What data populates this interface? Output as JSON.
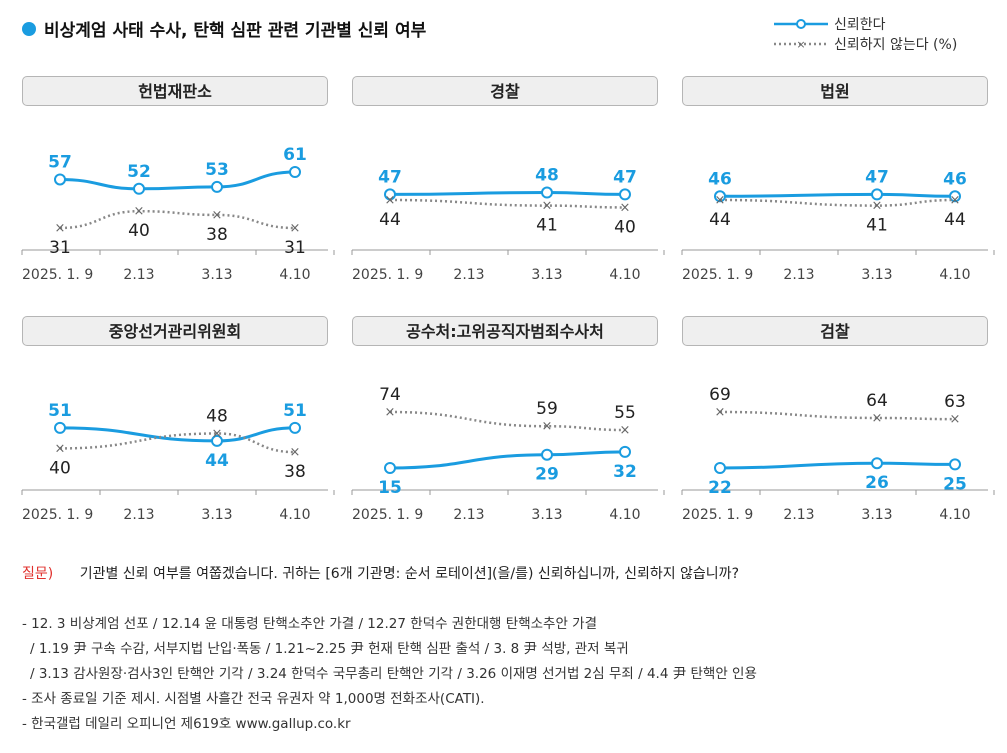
{
  "title": "비상계엄 사태 수사, 탄핵 심판 관련 기관별 신뢰 여부",
  "legend": {
    "trust": "신뢰한다",
    "distrust": "신뢰하지 않는다 (%)"
  },
  "colors": {
    "trust": "#1a9ce0",
    "distrust": "#888888",
    "title_dot": "#1a9ce0",
    "question_label": "#e0312d"
  },
  "chart_data": [
    {
      "type": "line",
      "title": "헌법재판소",
      "categories": [
        "2025. 1. 9",
        "2.13",
        "3.13",
        "4.10"
      ],
      "series": [
        {
          "name": "신뢰한다",
          "values": [
            57,
            52,
            53,
            61
          ]
        },
        {
          "name": "신뢰하지 않는다",
          "values": [
            31,
            40,
            38,
            31
          ]
        }
      ]
    },
    {
      "type": "line",
      "title": "경찰",
      "categories": [
        "2025. 1. 9",
        "2.13",
        "3.13",
        "4.10"
      ],
      "series": [
        {
          "name": "신뢰한다",
          "values": [
            47,
            null,
            48,
            47
          ]
        },
        {
          "name": "신뢰하지 않는다",
          "values": [
            44,
            null,
            41,
            40
          ]
        }
      ]
    },
    {
      "type": "line",
      "title": "법원",
      "categories": [
        "2025. 1. 9",
        "2.13",
        "3.13",
        "4.10"
      ],
      "series": [
        {
          "name": "신뢰한다",
          "values": [
            46,
            null,
            47,
            46
          ]
        },
        {
          "name": "신뢰하지 않는다",
          "values": [
            44,
            null,
            41,
            44
          ]
        }
      ]
    },
    {
      "type": "line",
      "title": "중앙선거관리위원회",
      "categories": [
        "2025. 1. 9",
        "2.13",
        "3.13",
        "4.10"
      ],
      "series": [
        {
          "name": "신뢰한다",
          "values": [
            51,
            null,
            44,
            51
          ]
        },
        {
          "name": "신뢰하지 않는다",
          "values": [
            40,
            null,
            48,
            38
          ]
        }
      ]
    },
    {
      "type": "line",
      "title": "공수처:고위공직자범죄수사처",
      "categories": [
        "2025. 1. 9",
        "2.13",
        "3.13",
        "4.10"
      ],
      "series": [
        {
          "name": "신뢰한다",
          "values": [
            15,
            null,
            29,
            32
          ]
        },
        {
          "name": "신뢰하지 않는다",
          "values": [
            74,
            null,
            59,
            55
          ]
        }
      ]
    },
    {
      "type": "line",
      "title": "검찰",
      "categories": [
        "2025. 1. 9",
        "2.13",
        "3.13",
        "4.10"
      ],
      "series": [
        {
          "name": "신뢰한다",
          "values": [
            22,
            null,
            26,
            25
          ]
        },
        {
          "name": "신뢰하지 않는다",
          "values": [
            69,
            null,
            64,
            63
          ]
        }
      ]
    }
  ],
  "question": {
    "label": "질문)",
    "text": "기관별 신뢰 여부를 여쭙겠습니다. 귀하는 [6개 기관명: 순서 로테이션](을/를) 신뢰하십니까, 신뢰하지 않습니까?"
  },
  "notes": [
    "- 12. 3 비상계엄 선포 / 12.14 윤 대통령 탄핵소추안 가결 / 12.27 한덕수 권한대행 탄핵소추안 가결",
    "  / 1.19 尹 구속 수감, 서부지법 난입·폭동 / 1.21~2.25 尹 헌재 탄핵 심판 출석 / 3. 8 尹 석방, 관저 복귀",
    "  / 3.13 감사원장·검사3인 탄핵안 기각 / 3.24 한덕수 국무총리 탄핵안 기각 / 3.26 이재명 선거법 2심 무죄 / 4.4 尹 탄핵안 인용",
    "- 조사 종료일 기준 제시. 시점별 사흘간 전국 유권자 약 1,000명 전화조사(CATI).",
    "- 한국갤럽 데일리 오피니언 제619호 www.gallup.co.kr"
  ]
}
